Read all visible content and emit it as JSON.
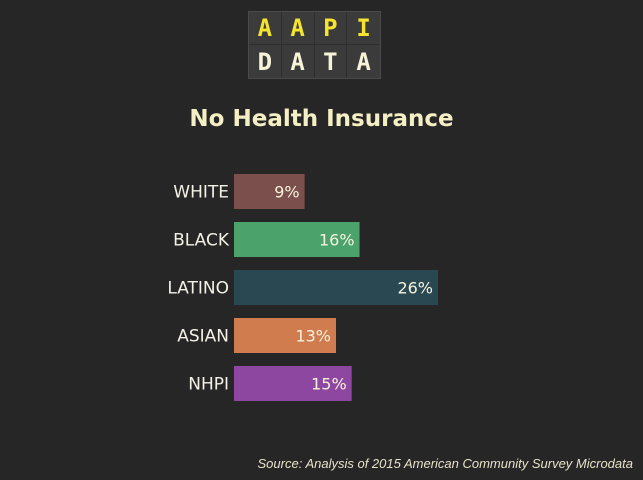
{
  "logo": {
    "row1": [
      "A",
      "A",
      "P",
      "I"
    ],
    "row2": [
      "D",
      "A",
      "T",
      "A"
    ]
  },
  "colors": {
    "background": "#262626",
    "title": "#f4efc4",
    "logo_top": "#f5e430",
    "logo_bottom": "#f7f3d8"
  },
  "chart_data": {
    "type": "bar",
    "orientation": "horizontal",
    "title": "No Health Insurance",
    "categories": [
      "WHITE",
      "BLACK",
      "LATINO",
      "ASIAN",
      "NHPI"
    ],
    "values": [
      9,
      16,
      26,
      13,
      15
    ],
    "value_labels": [
      "9%",
      "16%",
      "26%",
      "13%",
      "15%"
    ],
    "bar_colors": [
      "#7b4f4b",
      "#4ba36b",
      "#2a4852",
      "#d07c4f",
      "#8e47a0"
    ],
    "xlim": [
      0,
      26
    ],
    "grid": false,
    "legend": "none"
  },
  "source": "Source: Analysis of 2015 American Community Survey Microdata"
}
